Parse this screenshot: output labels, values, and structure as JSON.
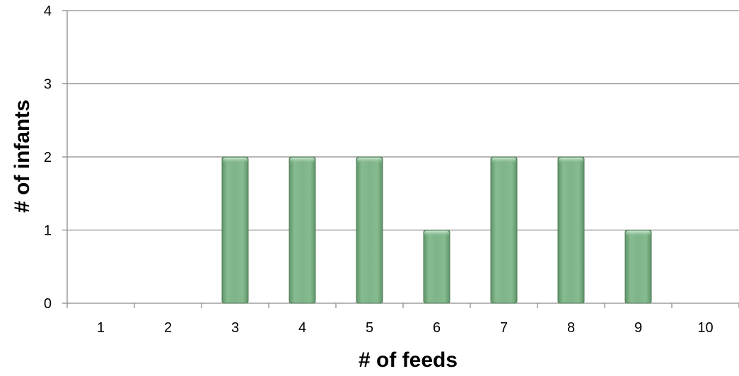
{
  "chart_data": {
    "type": "bar",
    "title": "",
    "xlabel": "# of feeds",
    "ylabel": "# of infants",
    "categories": [
      "1",
      "2",
      "3",
      "4",
      "5",
      "6",
      "7",
      "8",
      "9",
      "10"
    ],
    "values": [
      0,
      0,
      2,
      2,
      2,
      1,
      2,
      2,
      1,
      0
    ],
    "ylim": [
      0,
      4
    ],
    "yticks": [
      "0",
      "1",
      "2",
      "3",
      "4"
    ],
    "grid": true,
    "legend": "none",
    "bar_color": "#7fb389",
    "bar_edge_color": "#4f7a56",
    "gridline_color": "#8c8c8c"
  }
}
